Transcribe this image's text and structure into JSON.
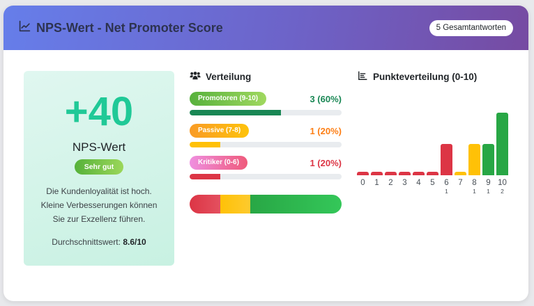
{
  "header": {
    "title": "NPS-Wert - Net Promoter Score",
    "icon": "line-chart-icon",
    "total_badge": "5 Gesamtantworten"
  },
  "score": {
    "value": "+40",
    "label": "NPS-Wert",
    "rating": "Sehr gut",
    "description_lines": [
      "Die Kundenloyalität ist hoch.",
      "Kleine Verbesserungen können",
      "Sie zur Exzellenz führen."
    ],
    "average_label": "Durchschnittswert:",
    "average_value": "8.6/10",
    "color": "#20c997"
  },
  "distribution": {
    "title": "Verteilung",
    "icon": "users-icon",
    "rows": [
      {
        "label": "Promotoren (9-10)",
        "count_text": "3 (60%)",
        "percent": 60,
        "color": "#198754",
        "text_color": "#198754"
      },
      {
        "label": "Passive (7-8)",
        "count_text": "1 (20%)",
        "percent": 20,
        "color": "#ffc107",
        "text_color": "#fd7e14"
      },
      {
        "label": "Kritiker (0-6)",
        "count_text": "1 (20%)",
        "percent": 20,
        "color": "#dc3545",
        "text_color": "#dc3545"
      }
    ],
    "stacked": [
      {
        "name": "Kritiker",
        "percent": 20,
        "color": "#dc3545"
      },
      {
        "name": "Passive",
        "percent": 20,
        "color": "#ffc107"
      },
      {
        "name": "Promotoren",
        "percent": 60,
        "color": "#28a745"
      }
    ]
  },
  "histogram": {
    "title": "Punkteverteilung (0-10)",
    "icon": "bar-chart-icon",
    "scores": [
      {
        "score": "0",
        "count": 0,
        "count_label": "",
        "color": "#dc3545"
      },
      {
        "score": "1",
        "count": 0,
        "count_label": "",
        "color": "#dc3545"
      },
      {
        "score": "2",
        "count": 0,
        "count_label": "",
        "color": "#dc3545"
      },
      {
        "score": "3",
        "count": 0,
        "count_label": "",
        "color": "#dc3545"
      },
      {
        "score": "4",
        "count": 0,
        "count_label": "",
        "color": "#dc3545"
      },
      {
        "score": "5",
        "count": 0,
        "count_label": "",
        "color": "#dc3545"
      },
      {
        "score": "6",
        "count": 1,
        "count_label": "1",
        "color": "#dc3545"
      },
      {
        "score": "7",
        "count": 0,
        "count_label": "",
        "color": "#ffc107"
      },
      {
        "score": "8",
        "count": 1,
        "count_label": "1",
        "color": "#ffc107"
      },
      {
        "score": "9",
        "count": 1,
        "count_label": "1",
        "color": "#28a745"
      },
      {
        "score": "10",
        "count": 2,
        "count_label": "2",
        "color": "#28a745"
      }
    ]
  }
}
